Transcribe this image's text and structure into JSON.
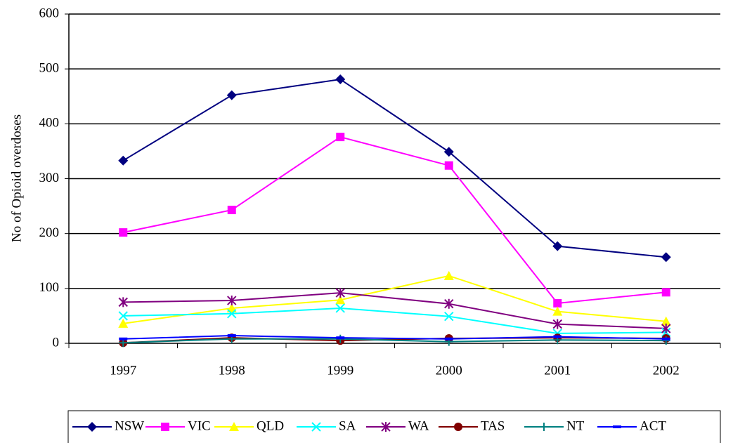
{
  "chart_data": {
    "type": "line",
    "ylabel": "No of Opioid overdoses",
    "categories": [
      "1997",
      "1998",
      "1999",
      "2000",
      "2001",
      "2002"
    ],
    "series": [
      {
        "name": "NSW",
        "color": "#000080",
        "marker": "diamond",
        "values": [
          333,
          452,
          481,
          349,
          177,
          157
        ]
      },
      {
        "name": "VIC",
        "color": "#ff00ff",
        "marker": "square",
        "values": [
          202,
          243,
          376,
          324,
          73,
          93
        ]
      },
      {
        "name": "QLD",
        "color": "#ffff00",
        "marker": "triangle",
        "values": [
          36,
          64,
          79,
          123,
          58,
          40
        ]
      },
      {
        "name": "SA",
        "color": "#00ffff",
        "marker": "x",
        "values": [
          50,
          54,
          64,
          49,
          18,
          20
        ]
      },
      {
        "name": "WA",
        "color": "#800080",
        "marker": "star",
        "values": [
          75,
          78,
          92,
          72,
          35,
          27
        ]
      },
      {
        "name": "TAS",
        "color": "#800000",
        "marker": "circle",
        "values": [
          1,
          10,
          5,
          9,
          10,
          9
        ]
      },
      {
        "name": "NT",
        "color": "#008080",
        "marker": "plus",
        "values": [
          1,
          8,
          8,
          3,
          6,
          5
        ]
      },
      {
        "name": "ACT",
        "color": "#0000ff",
        "marker": "dash",
        "values": [
          8,
          14,
          10,
          8,
          12,
          8
        ]
      }
    ],
    "ylim": [
      0,
      600
    ],
    "yticks": [
      0,
      100,
      200,
      300,
      400,
      500,
      600
    ],
    "grid": true,
    "legend": "bottom"
  }
}
